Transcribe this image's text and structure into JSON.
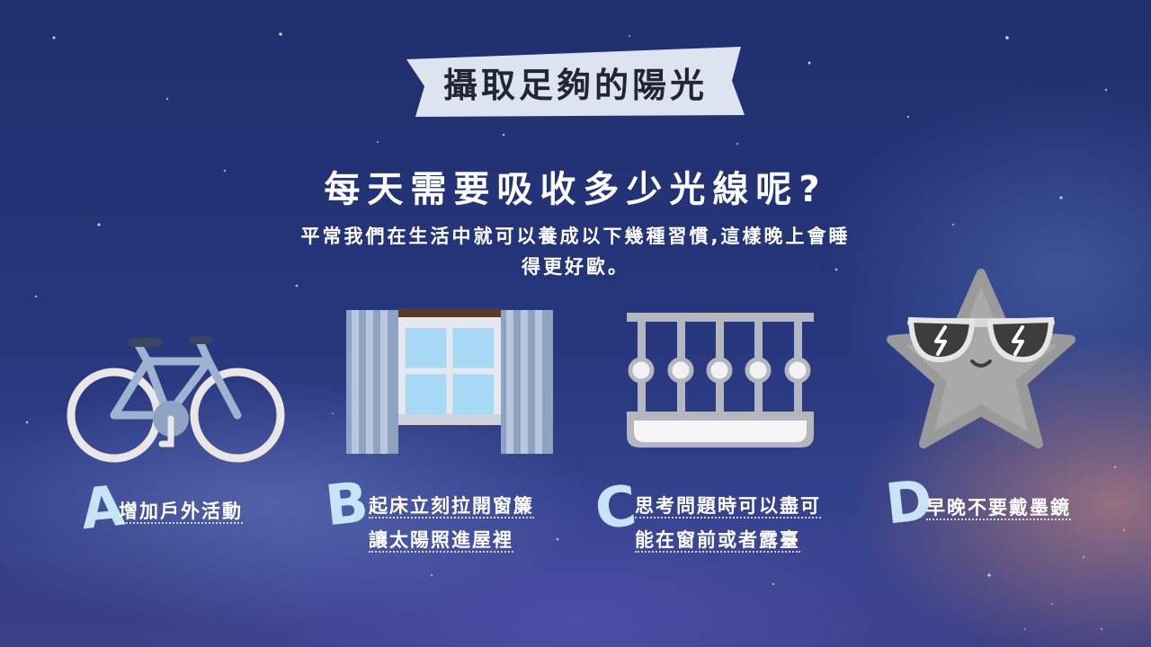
{
  "banner": {
    "title": "攝取足夠的陽光"
  },
  "headline": "每天需要吸收多少光線呢?",
  "subtitle": [
    "平常我們在生活中就可以養成以下幾種習慣,這樣晚上會睡",
    "得更好歐。"
  ],
  "items": [
    {
      "letter": "A",
      "icon": "bicycle-icon",
      "lines": [
        "增加戶外活動"
      ]
    },
    {
      "letter": "B",
      "icon": "window-curtain-icon",
      "lines": [
        "起床立刻拉開窗簾",
        "讓太陽照進屋裡"
      ]
    },
    {
      "letter": "C",
      "icon": "balcony-icon",
      "lines": [
        "思考問題時可以盡可",
        "能在窗前或者露臺"
      ]
    },
    {
      "letter": "D",
      "icon": "star-sunglasses-icon",
      "lines": [
        "早晚不要戴墨鏡"
      ]
    }
  ],
  "colors": {
    "background": "#24337a",
    "banner": "#dde3ef",
    "letter": "#c7e4f7",
    "text": "#ffffff"
  }
}
